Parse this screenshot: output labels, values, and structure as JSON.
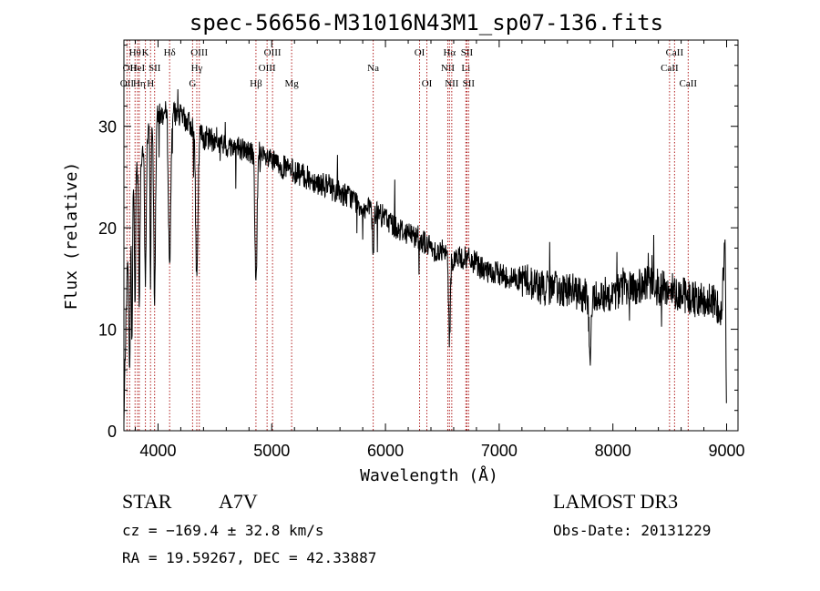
{
  "chart_data": {
    "type": "line",
    "title": "spec-56656-M31016N43M1_sp07-136.fits",
    "xlabel": "Wavelength (Å)",
    "ylabel": "Flux (relative)",
    "xlim": [
      3700,
      9100
    ],
    "ylim": [
      0,
      38.5
    ],
    "xticks": [
      4000,
      5000,
      6000,
      7000,
      8000,
      9000
    ],
    "yticks": [
      0,
      10,
      20,
      30
    ],
    "grid": false,
    "series": [
      {
        "name": "spectrum",
        "continuum": [
          [
            3700,
            0.5
          ],
          [
            3712,
            8
          ],
          [
            3725,
            14
          ],
          [
            3740,
            19
          ],
          [
            3760,
            23
          ],
          [
            3800,
            26
          ],
          [
            3850,
            27
          ],
          [
            3900,
            29
          ],
          [
            3950,
            30
          ],
          [
            4000,
            31
          ],
          [
            4100,
            31.5
          ],
          [
            4200,
            31
          ],
          [
            4300,
            30
          ],
          [
            4400,
            29
          ],
          [
            4500,
            28.5
          ],
          [
            4600,
            28
          ],
          [
            4700,
            28
          ],
          [
            4800,
            27.5
          ],
          [
            4900,
            27
          ],
          [
            5000,
            26.5
          ],
          [
            5100,
            26
          ],
          [
            5200,
            25.5
          ],
          [
            5300,
            25
          ],
          [
            5400,
            24.5
          ],
          [
            5500,
            24
          ],
          [
            5600,
            23.5
          ],
          [
            5700,
            23
          ],
          [
            5800,
            22
          ],
          [
            5900,
            21.5
          ],
          [
            6000,
            21
          ],
          [
            6100,
            20
          ],
          [
            6200,
            19.5
          ],
          [
            6300,
            19
          ],
          [
            6400,
            18
          ],
          [
            6500,
            17.5
          ],
          [
            6600,
            17
          ],
          [
            6700,
            17
          ],
          [
            6800,
            16.5
          ],
          [
            6900,
            15.5
          ],
          [
            7000,
            15.5
          ],
          [
            7100,
            15
          ],
          [
            7200,
            15
          ],
          [
            7300,
            14.5
          ],
          [
            7400,
            14
          ],
          [
            7500,
            14
          ],
          [
            7600,
            14
          ],
          [
            7700,
            13.5
          ],
          [
            7800,
            13
          ],
          [
            7900,
            13.5
          ],
          [
            8000,
            13.5
          ],
          [
            8100,
            14
          ],
          [
            8200,
            14
          ],
          [
            8300,
            14.5
          ],
          [
            8400,
            14
          ],
          [
            8500,
            14
          ],
          [
            8600,
            13.5
          ],
          [
            8700,
            13
          ],
          [
            8800,
            13
          ],
          [
            8900,
            12.5
          ],
          [
            8960,
            12
          ],
          [
            8985,
            20
          ],
          [
            9000,
            1
          ]
        ],
        "absorption_features": [
          {
            "wavelength": 3750,
            "depth": 16,
            "width": 6
          },
          {
            "wavelength": 3771,
            "depth": 15,
            "width": 5
          },
          {
            "wavelength": 3798,
            "depth": 14,
            "width": 5
          },
          {
            "wavelength": 3835,
            "depth": 14,
            "width": 6
          },
          {
            "wavelength": 3889,
            "depth": 14,
            "width": 7
          },
          {
            "wavelength": 3934,
            "depth": 16,
            "width": 4
          },
          {
            "wavelength": 3970,
            "depth": 17,
            "width": 8
          },
          {
            "wavelength": 4102,
            "depth": 15,
            "width": 10
          },
          {
            "wavelength": 4341,
            "depth": 15,
            "width": 10
          },
          {
            "wavelength": 4861,
            "depth": 13,
            "width": 9
          },
          {
            "wavelength": 5892,
            "depth": 4,
            "width": 6
          },
          {
            "wavelength": 6563,
            "depth": 8,
            "width": 8
          },
          {
            "wavelength": 7800,
            "depth": 5,
            "width": 10
          }
        ],
        "noise_amplitude": 1.2
      }
    ],
    "line_markers": [
      {
        "wavelength": 3727,
        "label": "OII",
        "row": 3
      },
      {
        "wavelength": 3750,
        "label": "OII",
        "row": 2
      },
      {
        "wavelength": 3798,
        "label": "Hθ",
        "row": 1
      },
      {
        "wavelength": 3820,
        "label": "HeI",
        "row": 2
      },
      {
        "wavelength": 3835,
        "label": "Hη",
        "row": 3
      },
      {
        "wavelength": 3889,
        "label": "K",
        "row": 1
      },
      {
        "wavelength": 3934,
        "label": "H",
        "row": 3
      },
      {
        "wavelength": 3970,
        "label": "SII",
        "row": 2
      },
      {
        "wavelength": 4102,
        "label": "Hδ",
        "row": 1
      },
      {
        "wavelength": 4304,
        "label": "G",
        "row": 3
      },
      {
        "wavelength": 4341,
        "label": "Hγ",
        "row": 2
      },
      {
        "wavelength": 4363,
        "label": "OIII",
        "row": 1
      },
      {
        "wavelength": 4861,
        "label": "Hβ",
        "row": 3
      },
      {
        "wavelength": 4959,
        "label": "OIII",
        "row": 2
      },
      {
        "wavelength": 5007,
        "label": "OIII",
        "row": 1
      },
      {
        "wavelength": 5175,
        "label": "Mg",
        "row": 3
      },
      {
        "wavelength": 5892,
        "label": "Na",
        "row": 2
      },
      {
        "wavelength": 6300,
        "label": "OI",
        "row": 1
      },
      {
        "wavelength": 6364,
        "label": "OI",
        "row": 3
      },
      {
        "wavelength": 6548,
        "label": "NII",
        "row": 2
      },
      {
        "wavelength": 6563,
        "label": "Hα",
        "row": 1
      },
      {
        "wavelength": 6583,
        "label": "NII",
        "row": 3
      },
      {
        "wavelength": 6707,
        "label": "Li",
        "row": 2
      },
      {
        "wavelength": 6716,
        "label": "SII",
        "row": 1
      },
      {
        "wavelength": 6731,
        "label": "SII",
        "row": 3
      },
      {
        "wavelength": 8498,
        "label": "CaII",
        "row": 2
      },
      {
        "wavelength": 8542,
        "label": "CaII",
        "row": 1
      },
      {
        "wavelength": 8662,
        "label": "CaII",
        "row": 3
      }
    ],
    "colors": {
      "spectrum": "#000000",
      "marker_line": "#b22222",
      "axes": "#000000",
      "background": "#ffffff"
    }
  },
  "info": {
    "class_label": "STAR",
    "subclass": "A7V",
    "survey": "LAMOST DR3",
    "cz": "cz = −169.4 ± 32.8 km/s",
    "obs_date": "Obs-Date: 20131229",
    "coords": "RA =  19.59267, DEC =  42.33887"
  }
}
